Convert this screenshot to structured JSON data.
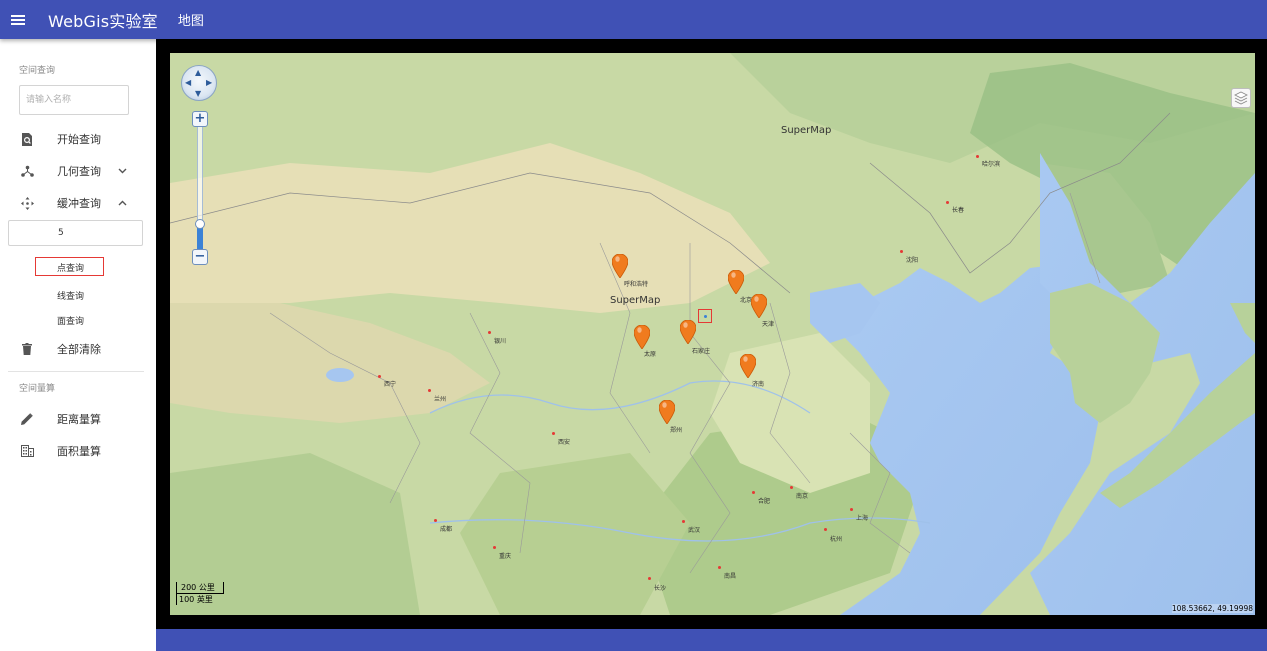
{
  "header": {
    "title": "WebGis实验室",
    "nav_map": "地图"
  },
  "sidebar": {
    "spatial_query_label": "空间查询",
    "name_input_placeholder": "请输入名称",
    "start_query": "开始查询",
    "geometry_query": "几何查询",
    "buffer_query": "缓冲查询",
    "buffer_value": "5",
    "point_query": "点查询",
    "line_query": "线查询",
    "polygon_query": "面查询",
    "clear_all": "全部清除",
    "measure_label": "空间量算",
    "distance_measure": "距离量算",
    "area_measure": "面积量算"
  },
  "map": {
    "watermarks": [
      "SuperMap",
      "SuperMap"
    ],
    "cities": [
      {
        "name": "哈尔滨"
      },
      {
        "name": "长春"
      },
      {
        "name": "沈阳"
      },
      {
        "name": "呼和浩特"
      },
      {
        "name": "北京"
      },
      {
        "name": "天津"
      },
      {
        "name": "银川"
      },
      {
        "name": "太原"
      },
      {
        "name": "石家庄"
      },
      {
        "name": "济南"
      },
      {
        "name": "西宁"
      },
      {
        "name": "兰州"
      },
      {
        "name": "西安"
      },
      {
        "name": "郑州"
      },
      {
        "name": "合肥"
      },
      {
        "name": "南京"
      },
      {
        "name": "上海"
      },
      {
        "name": "杭州"
      },
      {
        "name": "成都"
      },
      {
        "name": "武汉"
      },
      {
        "name": "重庆"
      },
      {
        "name": "南昌"
      },
      {
        "name": "长沙"
      }
    ],
    "scale_km": "200 公里",
    "scale_mi": "100 英里",
    "coords": "108.53662, 49.19998",
    "colors": {
      "land": "#c6d8a6",
      "water": "#a8c8f0",
      "marker": "#f07b1e",
      "header": "#4051b5"
    }
  }
}
